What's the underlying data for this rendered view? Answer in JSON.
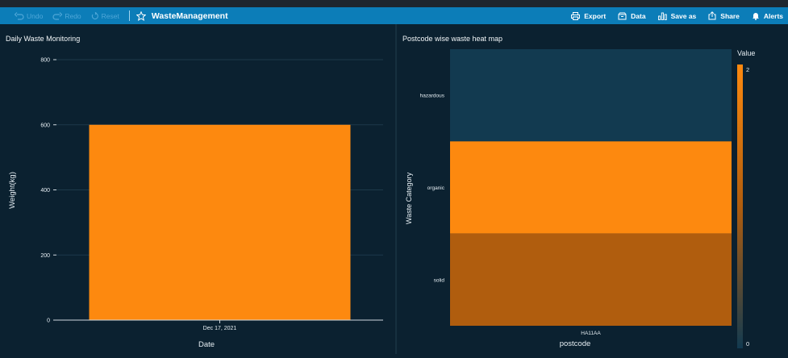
{
  "toolbar": {
    "undo": "Undo",
    "redo": "Redo",
    "reset": "Reset",
    "title": "WasteManagement",
    "actions": {
      "export": "Export",
      "data": "Data",
      "save_as": "Save as",
      "share": "Share",
      "alerts": "Alerts"
    }
  },
  "colors": {
    "toolbar": "#0c7db8",
    "background": "#0b2130",
    "bar": "#fd890f",
    "heat_low": "#123a50",
    "heat_high": "#fd890f"
  },
  "chart_data": [
    {
      "type": "bar",
      "title": "Daily Waste Monitoring",
      "categories": [
        "Dec 17, 2021"
      ],
      "values": [
        600
      ],
      "xlabel": "Date",
      "ylabel": "Weight(kg)",
      "ylim": [
        0,
        800
      ],
      "yticks": [
        0,
        200,
        400,
        600,
        800
      ],
      "grid": true
    },
    {
      "type": "heatmap",
      "title": "Postcode wise waste heat map",
      "x": [
        "HA11AA"
      ],
      "y": [
        "hazardous",
        "organic",
        "solid"
      ],
      "values": [
        [
          0
        ],
        [
          2
        ],
        [
          1
        ]
      ],
      "xlabel": "postcode",
      "ylabel": "Waste Category",
      "colorbar": {
        "label": "Value",
        "min": 0,
        "max": 2,
        "tick_labels": [
          "2",
          "0"
        ]
      }
    }
  ]
}
